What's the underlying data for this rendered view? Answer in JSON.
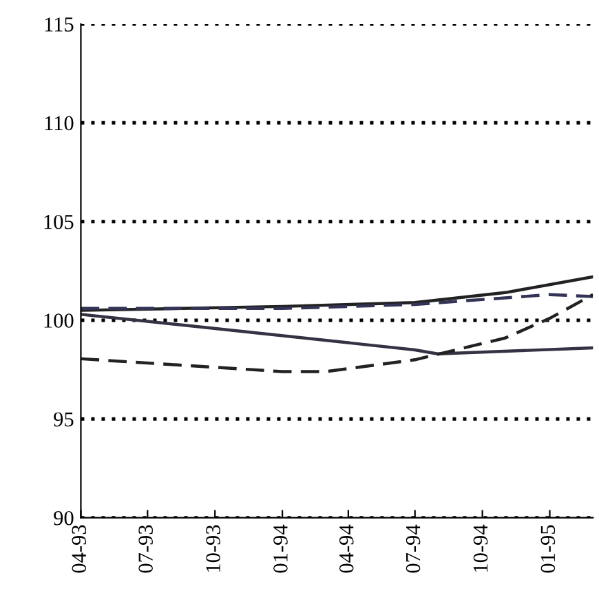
{
  "chart_data": {
    "type": "line",
    "grid": "y",
    "ylim": [
      90,
      115
    ],
    "yticks": [
      90,
      95,
      100,
      105,
      110,
      115
    ],
    "xlim": [
      "1993-04",
      "1995-03"
    ],
    "xticks": [
      {
        "value": "1993-04",
        "label": "04-93"
      },
      {
        "value": "1993-07",
        "label": "07-93"
      },
      {
        "value": "1993-10",
        "label": "10-93"
      },
      {
        "value": "1994-01",
        "label": "01-94"
      },
      {
        "value": "1994-04",
        "label": "04-94"
      },
      {
        "value": "1994-07",
        "label": "07-94"
      },
      {
        "value": "1994-10",
        "label": "10-94"
      },
      {
        "value": "1995-01",
        "label": "01-95"
      }
    ],
    "series": [
      {
        "color": "#222222",
        "line_style": "solid",
        "x": [
          "1993-04",
          "1994-01",
          "1994-07",
          "1994-11",
          "1995-03"
        ],
        "values": [
          100.5,
          100.7,
          100.9,
          101.4,
          102.2
        ]
      },
      {
        "color": "#333355",
        "line_style": "dashed",
        "x": [
          "1993-04",
          "1994-01",
          "1994-07",
          "1995-01",
          "1995-03"
        ],
        "values": [
          100.6,
          100.6,
          100.8,
          101.3,
          101.2
        ]
      },
      {
        "color": "#333344",
        "line_style": "solid",
        "x": [
          "1993-04",
          "1993-09",
          "1994-07",
          "1994-08",
          "1995-03"
        ],
        "values": [
          100.3,
          99.7,
          98.5,
          98.3,
          98.6
        ]
      },
      {
        "color": "#222222",
        "line_style": "dashed",
        "x": [
          "1993-04",
          "1994-01",
          "1994-03",
          "1994-07",
          "1994-11",
          "1995-01",
          "1995-03"
        ],
        "values": [
          98.05,
          97.4,
          97.4,
          98.0,
          99.1,
          100.1,
          101.3
        ]
      }
    ]
  }
}
